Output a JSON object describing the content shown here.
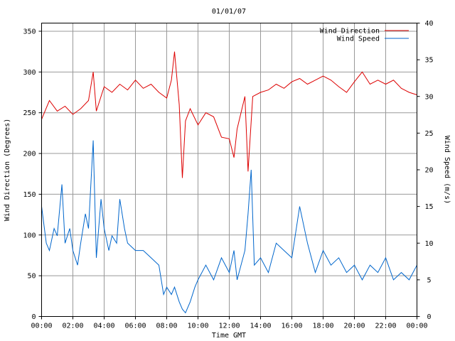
{
  "chart_data": {
    "type": "line",
    "title": "01/01/07",
    "xlabel": "Time GMT",
    "ylabel_left": "Wind Direction (Degrees)",
    "ylabel_right": "Wind Speed (m/s)",
    "x_tick_labels": [
      "00:00",
      "02:00",
      "04:00",
      "06:00",
      "08:00",
      "10:00",
      "12:00",
      "14:00",
      "16:00",
      "18:00",
      "20:00",
      "22:00",
      "00:00"
    ],
    "xlim_hours": [
      0,
      24
    ],
    "ylim_left": [
      0,
      360
    ],
    "ylim_right": [
      0,
      40
    ],
    "y_left_ticks": [
      0,
      50,
      100,
      150,
      200,
      250,
      300,
      350
    ],
    "y_right_ticks": [
      0,
      5,
      10,
      15,
      20,
      25,
      30,
      35,
      40
    ],
    "grid": true,
    "legend_position": "top-right",
    "colors": {
      "direction": "#dd0000",
      "speed": "#0066cc",
      "grid": "#999999"
    },
    "series": [
      {
        "name": "Wind Direction",
        "axis": "left",
        "x_hours": [
          0,
          0.5,
          1,
          1.5,
          2,
          2.5,
          3,
          3.3,
          3.5,
          4,
          4.5,
          5,
          5.5,
          6,
          6.5,
          7,
          7.5,
          8,
          8.3,
          8.5,
          8.8,
          9,
          9.2,
          9.5,
          10,
          10.5,
          11,
          11.5,
          12,
          12.3,
          12.5,
          13,
          13.2,
          13.5,
          14,
          14.5,
          15,
          15.5,
          16,
          16.5,
          17,
          17.5,
          18,
          18.5,
          19,
          19.5,
          20,
          20.5,
          21,
          21.5,
          22,
          22.5,
          23,
          23.5,
          24
        ],
        "values": [
          242,
          265,
          252,
          258,
          248,
          255,
          265,
          300,
          252,
          282,
          275,
          285,
          278,
          290,
          280,
          285,
          275,
          268,
          290,
          325,
          260,
          170,
          240,
          255,
          235,
          250,
          245,
          220,
          218,
          195,
          230,
          270,
          178,
          270,
          275,
          278,
          285,
          280,
          288,
          292,
          285,
          290,
          295,
          290,
          282,
          275,
          288,
          300,
          285,
          290,
          285,
          290,
          280,
          275,
          272
        ]
      },
      {
        "name": "Wind Speed",
        "axis": "right",
        "x_hours": [
          0,
          0.3,
          0.5,
          0.8,
          1,
          1.3,
          1.5,
          1.8,
          2,
          2.3,
          2.5,
          2.8,
          3,
          3.3,
          3.5,
          3.8,
          4,
          4.3,
          4.5,
          4.8,
          5,
          5.3,
          5.5,
          6,
          6.5,
          7,
          7.5,
          7.8,
          8,
          8.3,
          8.5,
          8.8,
          9,
          9.2,
          9.5,
          9.8,
          10,
          10.5,
          11,
          11.5,
          12,
          12.3,
          12.5,
          13,
          13.2,
          13.4,
          13.6,
          14,
          14.5,
          15,
          15.5,
          16,
          16.5,
          17,
          17.5,
          18,
          18.5,
          19,
          19.5,
          20,
          20.5,
          21,
          21.5,
          22,
          22.5,
          23,
          23.5,
          24
        ],
        "values": [
          15,
          10,
          9,
          12,
          11,
          18,
          10,
          12,
          9,
          7,
          10,
          14,
          12,
          24,
          8,
          16,
          12,
          9,
          11,
          10,
          16,
          12,
          10,
          9,
          9,
          8,
          7,
          3,
          4,
          3,
          4,
          2,
          1,
          0.5,
          2,
          4,
          5,
          7,
          5,
          8,
          6,
          9,
          5,
          9,
          14,
          20,
          7,
          8,
          6,
          10,
          9,
          8,
          15,
          10,
          6,
          9,
          7,
          8,
          6,
          7,
          5,
          7,
          6,
          8,
          5,
          6,
          5,
          7
        ]
      }
    ]
  }
}
